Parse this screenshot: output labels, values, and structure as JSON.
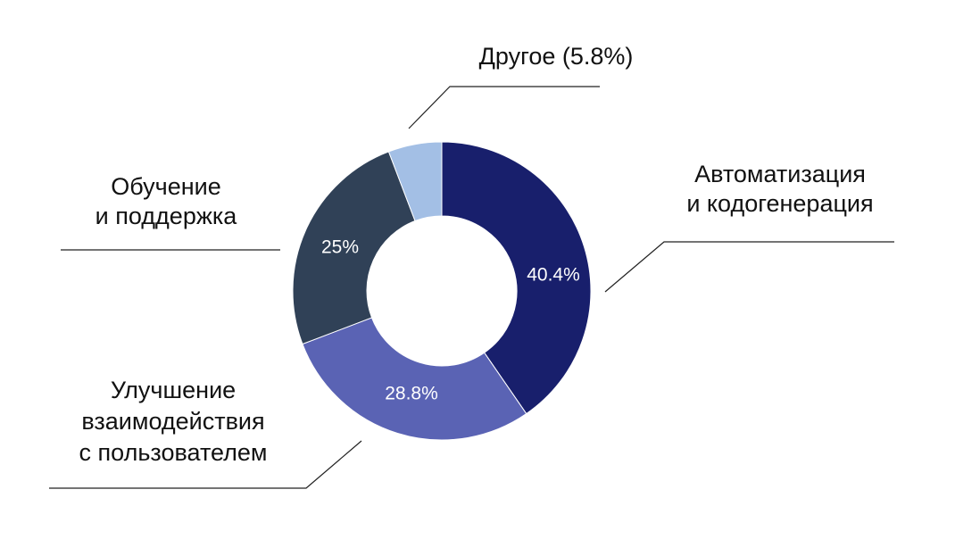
{
  "chart_data": {
    "type": "pie",
    "variant": "donut",
    "categories": [
      "Автоматизация и кодогенерация",
      "Улучшение взаимодействия с пользователем",
      "Обучение и поддержка",
      "Другое"
    ],
    "values": [
      40.4,
      28.8,
      25,
      5.8
    ],
    "labels": [
      {
        "lines": [
          "Автоматизация",
          "и кодогенерация"
        ],
        "value_text": "40.4%"
      },
      {
        "lines": [
          "Улучшение",
          "взаимодействия",
          "с пользователем"
        ],
        "value_text": "28.8%"
      },
      {
        "lines": [
          "Обучение",
          "и поддержка"
        ],
        "value_text": "25%"
      },
      {
        "lines": [
          "Другое (5.8%)"
        ],
        "value_text": ""
      }
    ],
    "colors": [
      "#181F6C",
      "#5A63B4",
      "#304157",
      "#A3BFE5"
    ],
    "title": "",
    "legend": "none"
  }
}
